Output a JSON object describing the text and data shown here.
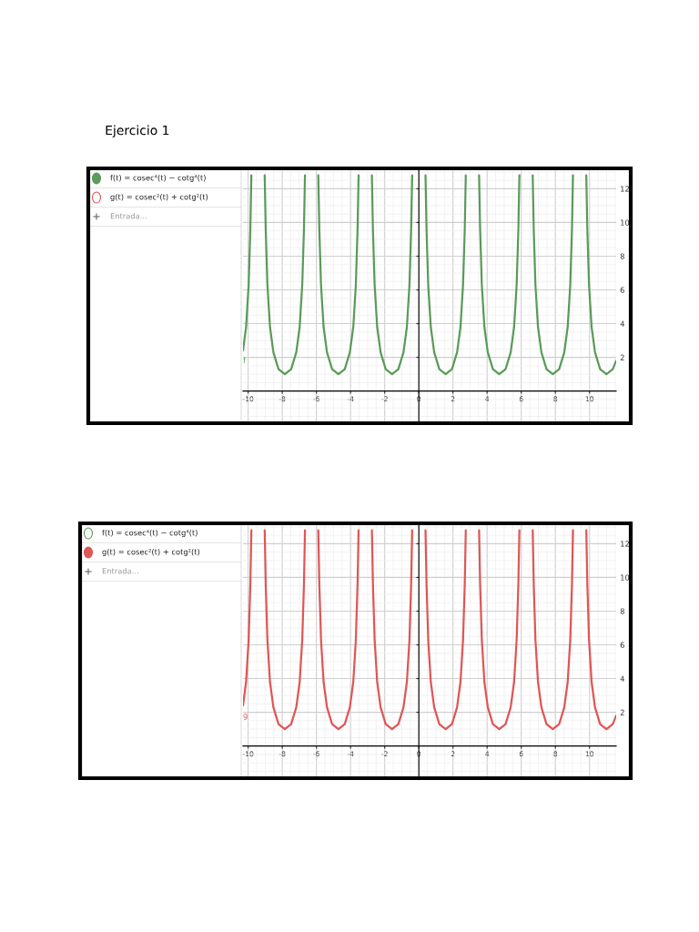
{
  "chart_data": [
    {
      "type": "line",
      "title": "Ejercicio 1",
      "annotations": [
        "f(t) = cosec⁴(t) − cotg⁴(t)",
        "g(t) = cosec²(t) + cotg²(t)",
        "Entrada..."
      ],
      "x": [
        -10.3,
        -10.12,
        -9.97,
        -9.87,
        -9.81,
        -9.42,
        -9.03,
        -8.97,
        -8.87,
        -8.72,
        -8.52,
        -8.22,
        -7.85,
        -7.48,
        -7.18,
        -6.98,
        -6.83,
        -6.73,
        -6.67,
        -6.28,
        -5.89,
        -5.83,
        -5.73,
        -5.58,
        -5.38,
        -5.08,
        -4.71,
        -4.34,
        -4.04,
        -3.84,
        -3.69,
        -3.59,
        -3.53,
        -3.14,
        -2.75,
        -2.69,
        -2.59,
        -2.44,
        -2.24,
        -1.94,
        -1.57,
        -1.2,
        -0.9,
        -0.7,
        -0.55,
        -0.45,
        -0.39,
        0,
        0.39,
        0.45,
        0.55,
        0.7,
        0.9,
        1.2,
        1.57,
        1.94,
        2.24,
        2.44,
        2.59,
        2.69,
        2.75,
        3.14,
        3.53,
        3.59,
        3.69,
        3.84,
        4.04,
        4.34,
        4.71,
        5.08,
        5.38,
        5.58,
        5.73,
        5.83,
        5.89,
        6.28,
        6.67,
        6.73,
        6.83,
        6.98,
        7.18,
        7.48,
        7.85,
        8.22,
        8.52,
        8.72,
        8.87,
        8.97,
        9.03,
        9.42,
        9.81,
        9.87,
        9.97,
        10.12,
        10.32,
        10.62,
        10.99,
        11.36,
        11.56
      ],
      "series": [
        {
          "name": "f",
          "color": "#5a9a5a",
          "values": [
            2.4,
            3.8,
            6.3,
            9.6,
            12.8,
            null,
            12.8,
            9.6,
            6.3,
            3.8,
            2.3,
            1.3,
            1,
            1.3,
            2.3,
            3.8,
            6.3,
            9.6,
            12.8,
            null,
            12.8,
            9.6,
            6.3,
            3.8,
            2.3,
            1.3,
            1,
            1.3,
            2.3,
            3.8,
            6.3,
            9.6,
            12.8,
            null,
            12.8,
            9.6,
            6.3,
            3.8,
            2.3,
            1.3,
            1,
            1.3,
            2.3,
            3.8,
            6.3,
            9.6,
            12.8,
            null,
            12.8,
            9.6,
            6.3,
            3.8,
            2.3,
            1.3,
            1,
            1.3,
            2.3,
            3.8,
            6.3,
            9.6,
            12.8,
            null,
            12.8,
            9.6,
            6.3,
            3.8,
            2.3,
            1.3,
            1,
            1.3,
            2.3,
            3.8,
            6.3,
            9.6,
            12.8,
            null,
            12.8,
            9.6,
            6.3,
            3.8,
            2.3,
            1.3,
            1,
            1.3,
            2.3,
            3.8,
            6.3,
            9.6,
            12.8,
            null,
            12.8,
            9.6,
            6.3,
            3.8,
            2.3,
            1.3,
            1,
            1.3,
            1.8
          ]
        }
      ],
      "xlim": [
        -10.3,
        11.56
      ],
      "ylim": [
        -1.8,
        13.1
      ],
      "xticks": [
        -10,
        -8,
        -6,
        -4,
        -2,
        0,
        2,
        4,
        6,
        8,
        10
      ],
      "yticks": [
        2,
        4,
        6,
        8,
        10,
        12
      ],
      "grid": true,
      "legend": false
    },
    {
      "type": "line",
      "annotations": [
        "f(t) = cosec⁴(t) − cotg⁴(t)",
        "g(t) = cosec²(t) + cotg²(t)",
        "Entrada..."
      ],
      "x": [
        -10.3,
        -10.12,
        -9.97,
        -9.87,
        -9.81,
        -9.42,
        -9.03,
        -8.97,
        -8.87,
        -8.72,
        -8.52,
        -8.22,
        -7.85,
        -7.48,
        -7.18,
        -6.98,
        -6.83,
        -6.73,
        -6.67,
        -6.28,
        -5.89,
        -5.83,
        -5.73,
        -5.58,
        -5.38,
        -5.08,
        -4.71,
        -4.34,
        -4.04,
        -3.84,
        -3.69,
        -3.59,
        -3.53,
        -3.14,
        -2.75,
        -2.69,
        -2.59,
        -2.44,
        -2.24,
        -1.94,
        -1.57,
        -1.2,
        -0.9,
        -0.7,
        -0.55,
        -0.45,
        -0.39,
        0,
        0.39,
        0.45,
        0.55,
        0.7,
        0.9,
        1.2,
        1.57,
        1.94,
        2.24,
        2.44,
        2.59,
        2.69,
        2.75,
        3.14,
        3.53,
        3.59,
        3.69,
        3.84,
        4.04,
        4.34,
        4.71,
        5.08,
        5.38,
        5.58,
        5.73,
        5.83,
        5.89,
        6.28,
        6.67,
        6.73,
        6.83,
        6.98,
        7.18,
        7.48,
        7.85,
        8.22,
        8.52,
        8.72,
        8.87,
        8.97,
        9.03,
        9.42,
        9.81,
        9.87,
        9.97,
        10.12,
        10.32,
        10.62,
        10.99,
        11.36,
        11.56
      ],
      "series": [
        {
          "name": "g",
          "color": "#e05555",
          "values": [
            2.4,
            3.8,
            6.3,
            9.6,
            12.8,
            null,
            12.8,
            9.6,
            6.3,
            3.8,
            2.3,
            1.3,
            1,
            1.3,
            2.3,
            3.8,
            6.3,
            9.6,
            12.8,
            null,
            12.8,
            9.6,
            6.3,
            3.8,
            2.3,
            1.3,
            1,
            1.3,
            2.3,
            3.8,
            6.3,
            9.6,
            12.8,
            null,
            12.8,
            9.6,
            6.3,
            3.8,
            2.3,
            1.3,
            1,
            1.3,
            2.3,
            3.8,
            6.3,
            9.6,
            12.8,
            null,
            12.8,
            9.6,
            6.3,
            3.8,
            2.3,
            1.3,
            1,
            1.3,
            2.3,
            3.8,
            6.3,
            9.6,
            12.8,
            null,
            12.8,
            9.6,
            6.3,
            3.8,
            2.3,
            1.3,
            1,
            1.3,
            2.3,
            3.8,
            6.3,
            9.6,
            12.8,
            null,
            12.8,
            9.6,
            6.3,
            3.8,
            2.3,
            1.3,
            1,
            1.3,
            2.3,
            3.8,
            6.3,
            9.6,
            12.8,
            null,
            12.8,
            9.6,
            6.3,
            3.8,
            2.3,
            1.3,
            1,
            1.3,
            1.8
          ]
        }
      ],
      "xlim": [
        -10.3,
        11.56
      ],
      "ylim": [
        -1.8,
        13.1
      ],
      "xticks": [
        -10,
        -8,
        -6,
        -4,
        -2,
        0,
        2,
        4,
        6,
        8,
        10
      ],
      "yticks": [
        2,
        4,
        6,
        8,
        10,
        12
      ],
      "grid": true,
      "legend": false
    }
  ]
}
